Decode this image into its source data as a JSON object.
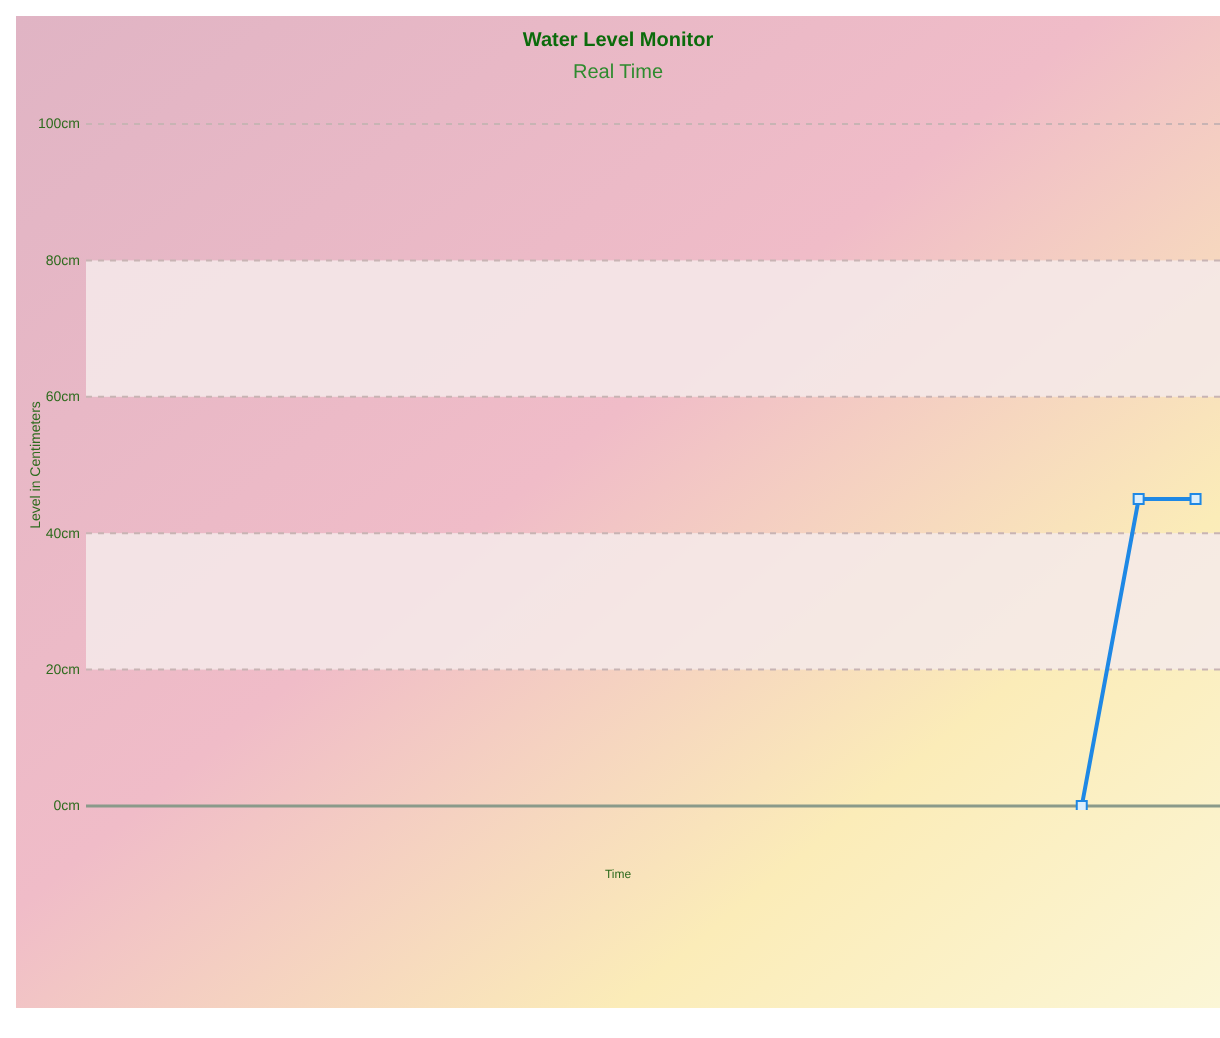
{
  "chart_data": {
    "type": "line",
    "title": "Water Level Monitor",
    "subtitle": "Real Time",
    "xlabel": "Time",
    "ylabel": "Level in Centimeters",
    "categories": [
      null,
      null,
      null,
      null,
      null,
      null,
      null,
      null,
      null,
      null,
      null,
      null,
      null,
      null,
      null,
      null,
      null,
      null,
      null,
      null
    ],
    "series": [
      {
        "color": "#1e88e5",
        "values": [
          null,
          null,
          null,
          null,
          null,
          null,
          null,
          null,
          null,
          null,
          null,
          null,
          null,
          null,
          null,
          null,
          null,
          0,
          45,
          45
        ]
      }
    ],
    "ylim": [
      0,
      100
    ],
    "yticks": [
      {
        "value": 0,
        "label": "0cm"
      },
      {
        "value": 20,
        "label": "20cm"
      },
      {
        "value": 40,
        "label": "40cm"
      },
      {
        "value": 60,
        "label": "60cm"
      },
      {
        "value": 80,
        "label": "80cm"
      },
      {
        "value": 100,
        "label": "100cm"
      }
    ],
    "bands": [
      {
        "axis": "y",
        "from": 20,
        "to": 40,
        "color": "#f4eaea"
      },
      {
        "axis": "y",
        "from": 60,
        "to": 80,
        "color": "#f4eaea"
      }
    ],
    "grid": "y",
    "marker": "square",
    "line_style": "solid"
  }
}
